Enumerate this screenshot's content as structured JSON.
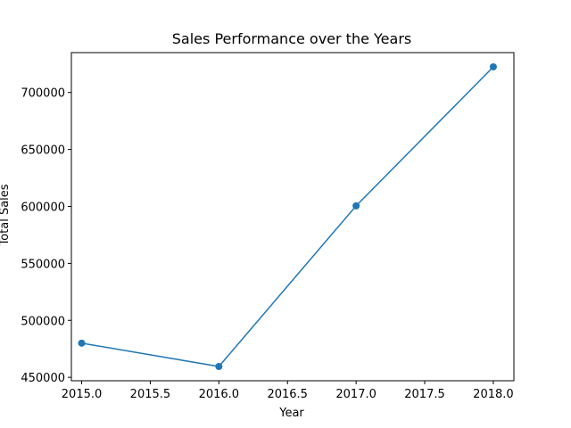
{
  "chart_data": {
    "type": "line",
    "title": "Sales Performance over the Years",
    "xlabel": "Year",
    "ylabel": "Total Sales",
    "x": [
      2015,
      2016,
      2017,
      2018
    ],
    "series": [
      {
        "values": [
          480000,
          459500,
          600500,
          722500
        ],
        "color": "#1f77b4",
        "marker": "circle"
      }
    ],
    "xlim": [
      2014.925,
      2018.15
    ],
    "ylim": [
      447000,
      735000
    ],
    "xticks": [
      "2015.0",
      "2015.5",
      "2016.0",
      "2016.5",
      "2017.0",
      "2017.5",
      "2018.0"
    ],
    "yticks": [
      "450000",
      "500000",
      "550000",
      "600000",
      "650000",
      "700000"
    ],
    "grid": false,
    "legend": "none"
  }
}
